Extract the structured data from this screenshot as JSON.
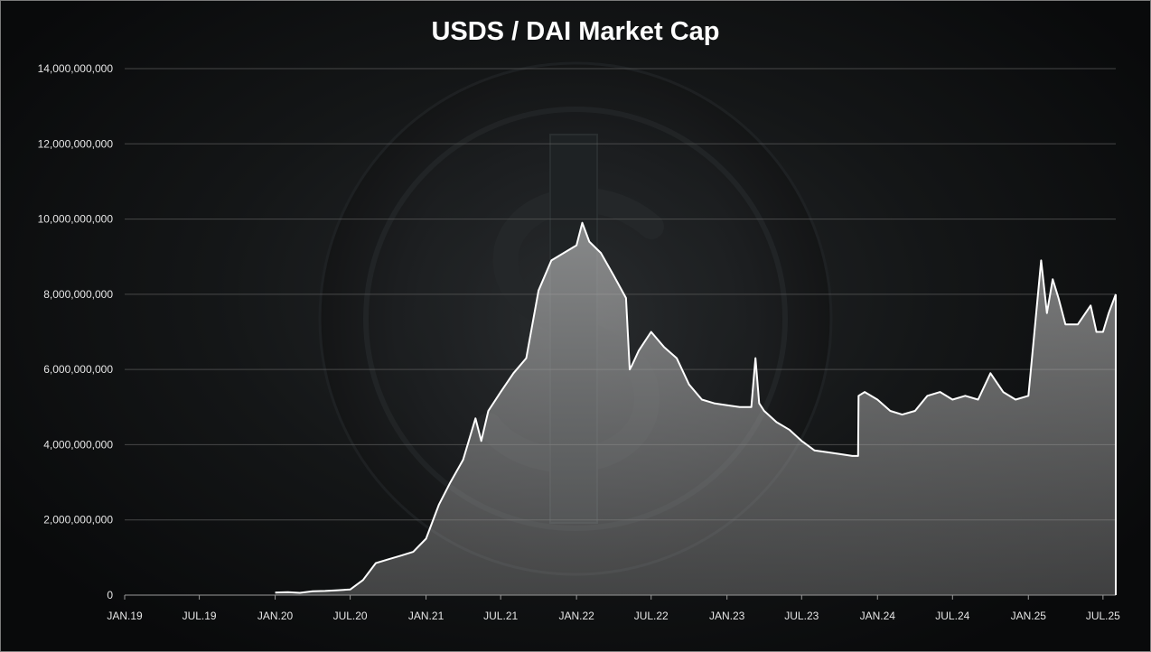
{
  "chart_data": {
    "type": "area",
    "title": "USDS / DAI Market Cap",
    "xlabel": "",
    "ylabel": "",
    "ylim": [
      0,
      14000000000
    ],
    "xlim": [
      "2019-01-01",
      "2025-08-01"
    ],
    "y_ticks": [
      "0",
      "2,000,000,000",
      "4,000,000,000",
      "6,000,000,000",
      "8,000,000,000",
      "10,000,000,000",
      "12,000,000,000",
      "14,000,000,000"
    ],
    "x_ticks": [
      "JAN.19",
      "JUL.19",
      "JAN.20",
      "JUL.20",
      "JAN.21",
      "JUL.21",
      "JAN.22",
      "JUL.22",
      "JAN.23",
      "JUL.23",
      "JAN.24",
      "JUL.24",
      "JAN.25",
      "JUL.25"
    ],
    "grid": true,
    "legend": "none",
    "colors": {
      "line": "#ffffff",
      "area": "#cfcfcf",
      "grid": "#5a5a5a",
      "background": "#101112"
    },
    "series": [
      {
        "x": [
          "2020-01-01",
          "2020-02-01",
          "2020-03-01",
          "2020-04-01",
          "2020-05-01",
          "2020-06-01",
          "2020-07-01",
          "2020-08-01",
          "2020-09-01",
          "2020-10-01",
          "2020-11-01",
          "2020-12-01",
          "2021-01-01",
          "2021-02-01",
          "2021-03-01",
          "2021-04-01",
          "2021-05-01",
          "2021-05-15",
          "2021-06-01",
          "2021-07-01",
          "2021-08-01",
          "2021-09-01",
          "2021-10-01",
          "2021-11-01",
          "2021-12-01",
          "2022-01-01",
          "2022-01-15",
          "2022-02-01",
          "2022-03-01",
          "2022-04-01",
          "2022-05-01",
          "2022-05-10",
          "2022-05-15",
          "2022-06-01",
          "2022-07-01",
          "2022-08-01",
          "2022-09-01",
          "2022-10-01",
          "2022-11-01",
          "2022-12-01",
          "2023-01-01",
          "2023-02-01",
          "2023-03-01",
          "2023-03-11",
          "2023-03-20",
          "2023-04-01",
          "2023-05-01",
          "2023-06-01",
          "2023-07-01",
          "2023-08-01",
          "2023-09-01",
          "2023-10-01",
          "2023-11-01",
          "2023-11-15",
          "2023-11-16",
          "2023-12-01",
          "2024-01-01",
          "2024-02-01",
          "2024-03-01",
          "2024-04-01",
          "2024-05-01",
          "2024-06-01",
          "2024-07-01",
          "2024-08-01",
          "2024-09-01",
          "2024-10-01",
          "2024-11-01",
          "2024-12-01",
          "2025-01-01",
          "2025-01-15",
          "2025-02-01",
          "2025-02-15",
          "2025-03-01",
          "2025-03-15",
          "2025-04-01",
          "2025-05-01",
          "2025-06-01",
          "2025-06-15",
          "2025-07-01",
          "2025-07-15",
          "2025-08-01"
        ],
        "values": [
          70000000,
          80000000,
          60000000,
          100000000,
          110000000,
          130000000,
          150000000,
          400000000,
          850000000,
          950000000,
          1050000000,
          1150000000,
          1500000000,
          2400000000,
          3000000000,
          3600000000,
          4700000000,
          4100000000,
          4900000000,
          5400000000,
          5900000000,
          6300000000,
          8100000000,
          8900000000,
          9100000000,
          9300000000,
          9900000000,
          9400000000,
          9100000000,
          8500000000,
          7900000000,
          6000000000,
          6100000000,
          6500000000,
          7000000000,
          6600000000,
          6300000000,
          5600000000,
          5200000000,
          5100000000,
          5050000000,
          5000000000,
          5000000000,
          6300000000,
          5100000000,
          4900000000,
          4600000000,
          4400000000,
          4100000000,
          3850000000,
          3800000000,
          3750000000,
          3700000000,
          3700000000,
          5300000000,
          5400000000,
          5200000000,
          4900000000,
          4800000000,
          4900000000,
          5300000000,
          5400000000,
          5200000000,
          5300000000,
          5200000000,
          5900000000,
          5400000000,
          5200000000,
          5300000000,
          6900000000,
          8900000000,
          7500000000,
          8400000000,
          7900000000,
          7200000000,
          7200000000,
          7700000000,
          7000000000,
          7000000000,
          7500000000,
          8000000000
        ]
      }
    ]
  }
}
